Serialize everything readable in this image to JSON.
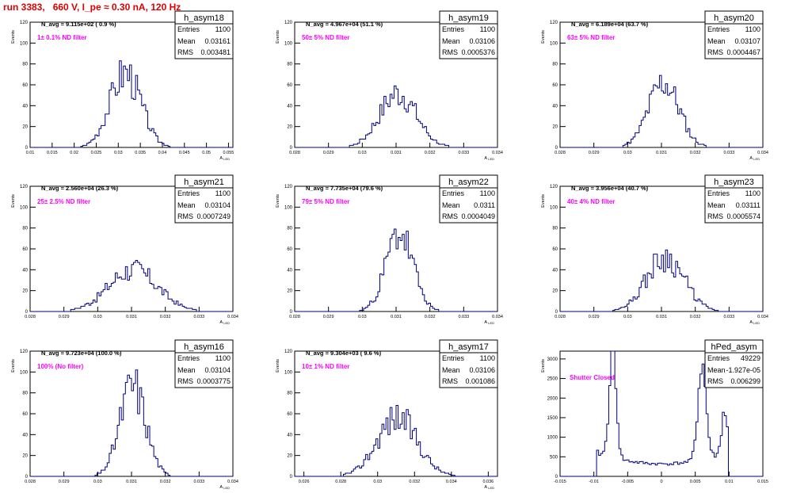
{
  "page": {
    "title": "run 3383,   660 V, I_pe ≈ 0.30 nA, 120 Hz"
  },
  "colors": {
    "title": "#e00000",
    "annotation": "#ff00ff",
    "histogram": "#000080",
    "axis": "#000000"
  },
  "stat_labels": {
    "entries": "Entries",
    "mean": "Mean",
    "rms": "RMS"
  },
  "chart_data": [
    {
      "type": "histogram",
      "name": "h_asym18",
      "navg": "N_avg = 9.115e+02 ( 0.9 %)",
      "annotation": "1± 0.1% ND filter",
      "stats": {
        "entries": "1100",
        "mean": "0.03161",
        "rms": "0.003481"
      },
      "ylabel": "Events",
      "xlabel": "A_LED",
      "xlim": [
        0.01,
        0.056
      ],
      "ylim": [
        0,
        120
      ],
      "xticks": [
        "0.01",
        "0.015",
        "0.02",
        "0.025",
        "0.03",
        "0.035",
        "0.04",
        "0.045",
        "0.05",
        "0.055"
      ],
      "yticks": [
        "0",
        "20",
        "40",
        "60",
        "80",
        "100",
        "120"
      ],
      "shape": {
        "kind": "gauss",
        "mean": 0.0316,
        "sigma": 0.0035,
        "peak": 72,
        "nbins": 100,
        "seed": 3
      }
    },
    {
      "type": "histogram",
      "name": "h_asym19",
      "navg": "N_avg = 4.967e+04 (51.1 %)",
      "annotation": "50± 5% ND filter",
      "stats": {
        "entries": "1100",
        "mean": "0.03106",
        "rms": "0.0005376"
      },
      "ylabel": "Events",
      "xlabel": "A_LED",
      "xlim": [
        0.028,
        0.034
      ],
      "ylim": [
        0,
        120
      ],
      "xticks": [
        "0.028",
        "0.029",
        "0.03",
        "0.031",
        "0.032",
        "0.033",
        "0.034"
      ],
      "yticks": [
        "0",
        "20",
        "40",
        "60",
        "80",
        "100",
        "120"
      ],
      "shape": {
        "kind": "gauss",
        "mean": 0.03106,
        "sigma": 0.00054,
        "peak": 52,
        "nbins": 100,
        "seed": 7
      }
    },
    {
      "type": "histogram",
      "name": "h_asym20",
      "navg": "N_avg = 6.189e+04 (63.7 %)",
      "annotation": "63± 5% ND filter",
      "stats": {
        "entries": "1100",
        "mean": "0.03107",
        "rms": "0.0004467"
      },
      "ylabel": "Events",
      "xlabel": "A_LED",
      "xlim": [
        0.028,
        0.034
      ],
      "ylim": [
        0,
        120
      ],
      "xticks": [
        "0.028",
        "0.029",
        "0.03",
        "0.031",
        "0.032",
        "0.033",
        "0.034"
      ],
      "yticks": [
        "0",
        "20",
        "40",
        "60",
        "80",
        "100",
        "120"
      ],
      "shape": {
        "kind": "gauss",
        "mean": 0.03107,
        "sigma": 0.00045,
        "peak": 62,
        "nbins": 100,
        "seed": 11
      }
    },
    {
      "type": "histogram",
      "name": "h_asym21",
      "navg": "N_avg = 2.560e+04 (26.3 %)",
      "annotation": "25± 2.5% ND filter",
      "stats": {
        "entries": "1100",
        "mean": "0.03104",
        "rms": "0.0007249"
      },
      "ylabel": "Events",
      "xlabel": "A_LED",
      "xlim": [
        0.028,
        0.034
      ],
      "ylim": [
        0,
        120
      ],
      "xticks": [
        "0.028",
        "0.029",
        "0.03",
        "0.031",
        "0.032",
        "0.033",
        "0.034"
      ],
      "yticks": [
        "0",
        "20",
        "40",
        "60",
        "80",
        "100",
        "120"
      ],
      "shape": {
        "kind": "gauss",
        "mean": 0.03104,
        "sigma": 0.00072,
        "peak": 40,
        "nbins": 100,
        "seed": 17
      }
    },
    {
      "type": "histogram",
      "name": "h_asym22",
      "navg": "N_avg = 7.735e+04 (79.6 %)",
      "annotation": "79± 5% ND filter",
      "stats": {
        "entries": "1100",
        "mean": "0.0311",
        "rms": "0.0004049"
      },
      "ylabel": "Events",
      "xlabel": "A_LED",
      "xlim": [
        0.028,
        0.034
      ],
      "ylim": [
        0,
        120
      ],
      "xticks": [
        "0.028",
        "0.029",
        "0.03",
        "0.031",
        "0.032",
        "0.033",
        "0.034"
      ],
      "yticks": [
        "0",
        "20",
        "40",
        "60",
        "80",
        "100",
        "120"
      ],
      "shape": {
        "kind": "gauss",
        "mean": 0.0311,
        "sigma": 0.0004,
        "peak": 75,
        "nbins": 100,
        "seed": 23
      }
    },
    {
      "type": "histogram",
      "name": "h_asym23",
      "navg": "N_avg = 3.956e+04 (40.7 %)",
      "annotation": "40± 4% ND filter",
      "stats": {
        "entries": "1100",
        "mean": "0.03111",
        "rms": "0.0005574"
      },
      "ylabel": "Events",
      "xlabel": "A_LED",
      "xlim": [
        0.028,
        0.034
      ],
      "ylim": [
        0,
        120
      ],
      "xticks": [
        "0.028",
        "0.029",
        "0.03",
        "0.031",
        "0.032",
        "0.033",
        "0.034"
      ],
      "yticks": [
        "0",
        "20",
        "40",
        "60",
        "80",
        "100",
        "120"
      ],
      "shape": {
        "kind": "gauss",
        "mean": 0.03111,
        "sigma": 0.00056,
        "peak": 52,
        "nbins": 100,
        "seed": 29
      }
    },
    {
      "type": "histogram",
      "name": "h_asym16",
      "navg": "N_avg = 9.723e+04 (100.0 %)",
      "annotation": "100% (No filter)",
      "stats": {
        "entries": "1100",
        "mean": "0.03104",
        "rms": "0.0003775"
      },
      "ylabel": "Events",
      "xlabel": "A_LED",
      "xlim": [
        0.028,
        0.034
      ],
      "ylim": [
        0,
        120
      ],
      "xticks": [
        "0.028",
        "0.029",
        "0.03",
        "0.031",
        "0.032",
        "0.033",
        "0.034"
      ],
      "yticks": [
        "0",
        "20",
        "40",
        "60",
        "80",
        "100",
        "120"
      ],
      "shape": {
        "kind": "gauss",
        "mean": 0.03104,
        "sigma": 0.00038,
        "peak": 87,
        "nbins": 100,
        "seed": 31
      }
    },
    {
      "type": "histogram",
      "name": "h_asym17",
      "navg": "N_avg = 9.304e+03 ( 9.6 %)",
      "annotation": "10± 1% ND filter",
      "stats": {
        "entries": "1100",
        "mean": "0.03106",
        "rms": "0.001086"
      },
      "ylabel": "Events",
      "xlabel": "A_LED",
      "xlim": [
        0.0255,
        0.0365
      ],
      "ylim": [
        0,
        120
      ],
      "xticks": [
        "0.026",
        "0.028",
        "0.03",
        "0.032",
        "0.034",
        "0.036"
      ],
      "yticks": [
        "0",
        "20",
        "40",
        "60",
        "80",
        "100",
        "120"
      ],
      "shape": {
        "kind": "gauss",
        "mean": 0.03106,
        "sigma": 0.00108,
        "peak": 57,
        "nbins": 100,
        "seed": 37
      }
    },
    {
      "type": "histogram",
      "name": "hPed_asym",
      "navg": "",
      "annotation": "Shutter Closed",
      "stats": {
        "entries": "49229",
        "mean": "-1.927e-05",
        "rms": "0.006299"
      },
      "ylabel": "Events",
      "xlabel": "",
      "xlim": [
        -0.015,
        0.015
      ],
      "ylim": [
        0,
        3200
      ],
      "xticks": [
        "-0.015",
        "-0.01",
        "-0.005",
        "0",
        "0.005",
        "0.01",
        "0.015"
      ],
      "yticks": [
        "0",
        "500",
        "1000",
        "1500",
        "2000",
        "2500",
        "3000"
      ],
      "shape": {
        "kind": "pedestal",
        "lo": -0.0095,
        "hi": 0.0098,
        "peak1_x": -0.0072,
        "peak1": 3000,
        "peak2_x": 0.006,
        "peak2": 2450,
        "peak3_x": 0.0093,
        "peak3": 1100,
        "floor": 320,
        "nbins": 100,
        "seed": 41
      }
    }
  ]
}
